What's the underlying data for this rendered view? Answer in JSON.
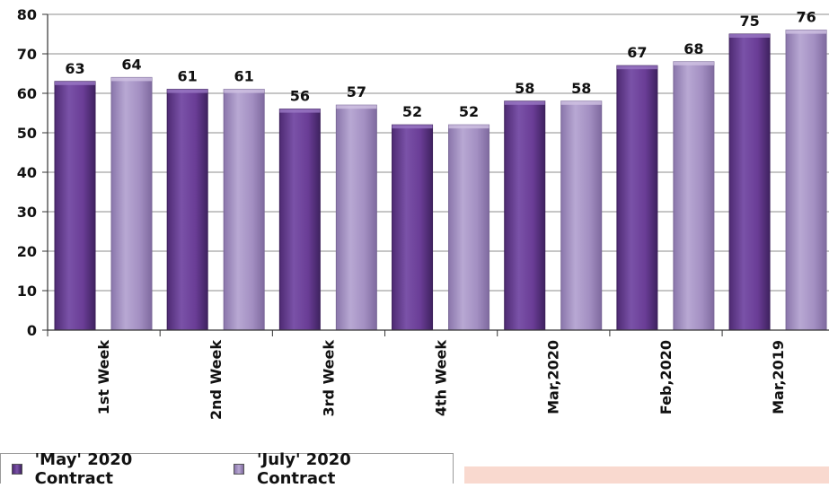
{
  "chart_data": {
    "type": "bar",
    "categories": [
      "1st Week",
      "2nd Week",
      "3rd Week",
      "4th Week",
      "Mar,2020",
      "Feb,2020",
      "Mar,2019"
    ],
    "series": [
      {
        "name": "'May' 2020 Contract",
        "values": [
          63,
          61,
          56,
          52,
          58,
          67,
          75
        ]
      },
      {
        "name": "'July' 2020 Contract",
        "values": [
          64,
          61,
          57,
          52,
          58,
          68,
          76
        ]
      }
    ],
    "y_ticks": [
      "0",
      "10",
      "20",
      "30",
      "40",
      "50",
      "60",
      "70",
      "80"
    ],
    "ylim": [
      0,
      80
    ],
    "grid": true,
    "legend_position": "bottom-left",
    "colors": {
      "series_1": "#6a3d96",
      "series_2": "#a38fc2",
      "gridline": "#8c8c8c",
      "axis": "#333333"
    }
  }
}
